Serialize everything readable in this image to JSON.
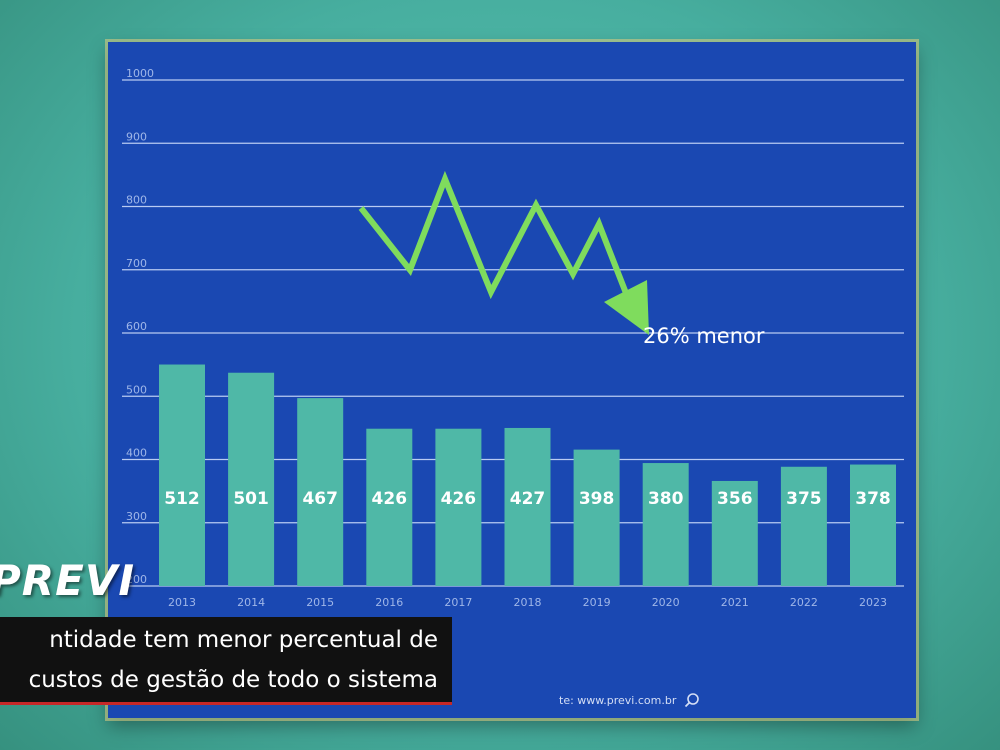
{
  "chart_data": {
    "type": "bar",
    "categories": [
      "2013",
      "2014",
      "2015",
      "2016",
      "2017",
      "2018",
      "2019",
      "2020",
      "2021",
      "2022",
      "2023"
    ],
    "values": [
      512,
      501,
      467,
      426,
      426,
      427,
      398,
      380,
      356,
      375,
      378
    ],
    "y_ticks": [
      "1000",
      "900",
      "800",
      "700",
      "600",
      "500",
      "400",
      "300",
      "200"
    ],
    "ylim": [
      200,
      1000
    ],
    "grid": true,
    "bar_color": "#4fb8a7",
    "background_color": "#1a48b2",
    "annotation": "26% menor",
    "arrow_color": "#7fdc5d"
  },
  "source": "te: www.previ.com.br",
  "brand": "PREVI",
  "caption": {
    "line1": "ntidade tem menor percentual de",
    "line2": "custos de gestão de todo o sistema"
  },
  "colors": {
    "caption_bg": "#111111",
    "caption_accent": "#c62828",
    "frame": "#decd82"
  }
}
